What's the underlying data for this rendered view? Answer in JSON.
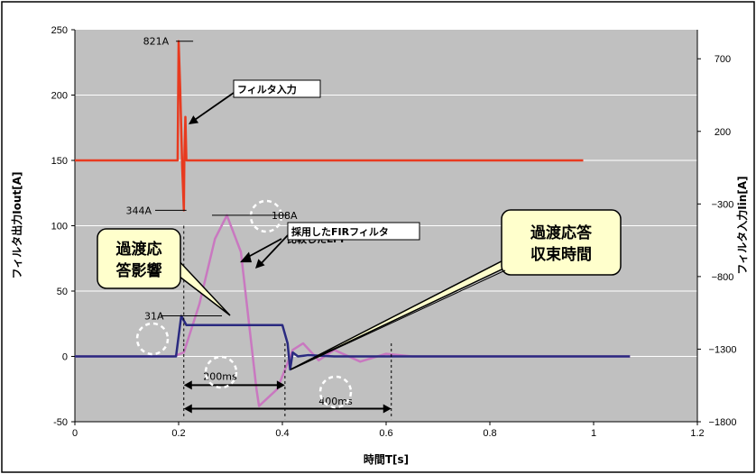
{
  "chart_data": {
    "type": "line",
    "xlabel": "時間T[s]",
    "ylabel_left": "フィルタ出力Iout[A]",
    "ylabel_right": "フィルタ入力Iin[A]",
    "xlim": [
      0,
      1.2
    ],
    "ylim_left": [
      -50,
      250
    ],
    "ylim_right": [
      -1800,
      900
    ],
    "xticks": [
      0,
      0.2,
      0.4,
      0.6,
      0.8,
      1,
      1.2
    ],
    "xtick_labels": [
      "0",
      "0.2",
      "0.4",
      "0.6",
      "0.8",
      "1",
      "1.2"
    ],
    "yticks_left": [
      -50,
      0,
      50,
      100,
      150,
      200,
      250
    ],
    "ytick_labels_left": [
      "-50",
      "0",
      "50",
      "100",
      "150",
      "200",
      "250"
    ],
    "yticks_right": [
      700,
      200,
      -300,
      -800,
      -1300,
      -1800
    ],
    "ytick_labels_right": [
      "700",
      "200",
      "−300",
      "−800",
      "−1300",
      "−1800"
    ],
    "grid": true,
    "series": [
      {
        "name": "フィルタ入力",
        "axis": "right",
        "color": "#e83a1f",
        "points": [
          [
            0,
            0
          ],
          [
            0.198,
            0
          ],
          [
            0.2,
            821
          ],
          [
            0.203,
            500
          ],
          [
            0.207,
            -50
          ],
          [
            0.21,
            -344
          ],
          [
            0.211,
            0
          ],
          [
            0.213,
            300
          ],
          [
            0.215,
            0
          ],
          [
            0.3,
            0
          ],
          [
            0.98,
            0
          ]
        ]
      },
      {
        "name": "比較したLPF",
        "axis": "left",
        "color": "#c978c0",
        "points": [
          [
            0,
            0
          ],
          [
            0.19,
            0
          ],
          [
            0.21,
            3
          ],
          [
            0.24,
            40
          ],
          [
            0.27,
            90
          ],
          [
            0.293,
            108
          ],
          [
            0.32,
            80
          ],
          [
            0.35,
            -25
          ],
          [
            0.355,
            -38
          ],
          [
            0.39,
            -25
          ],
          [
            0.42,
            5
          ],
          [
            0.44,
            10
          ],
          [
            0.47,
            -3
          ],
          [
            0.5,
            5
          ],
          [
            0.55,
            -4
          ],
          [
            0.6,
            2
          ],
          [
            0.65,
            0
          ],
          [
            1.07,
            0
          ]
        ]
      },
      {
        "name": "採用したFIRフィルタ",
        "axis": "left",
        "color": "#2a2a80",
        "points": [
          [
            0,
            0
          ],
          [
            0.195,
            0
          ],
          [
            0.205,
            31
          ],
          [
            0.215,
            24
          ],
          [
            0.4,
            24
          ],
          [
            0.41,
            10
          ],
          [
            0.415,
            -10
          ],
          [
            0.42,
            3
          ],
          [
            0.43,
            0
          ],
          [
            0.45,
            1
          ],
          [
            0.5,
            0
          ],
          [
            1.07,
            0
          ]
        ]
      }
    ],
    "annotations": {
      "peak_in": "821A",
      "min_in": "344A",
      "peak_lpf": "108A",
      "peak_fir": "31A",
      "label_input": "フィルタ入力",
      "label_lpf": "比較したLPF",
      "label_fir": "採用したFIRフィルタ",
      "dim_200": "200ms",
      "dim_400": "400ms",
      "callout_left_line1": "過渡応",
      "callout_left_line2": "答影響",
      "callout_right_line1": "過渡応答",
      "callout_right_line2": "収束時間"
    },
    "colors": {
      "plot_bg": "#c0c0c0",
      "grid": "#ffffff",
      "callout_fill": "#ffffcc"
    }
  }
}
